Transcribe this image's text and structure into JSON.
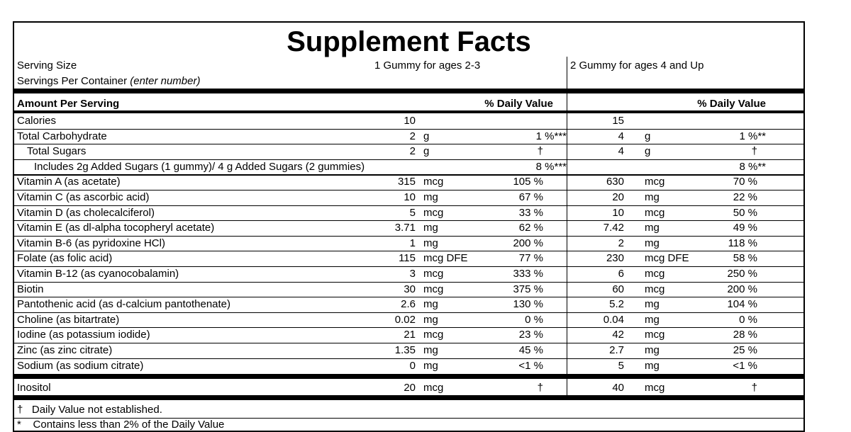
{
  "title": "Supplement Facts",
  "serving": {
    "size_label": "Serving Size",
    "servings_label": "Servings Per Container",
    "servings_note": "(enter number)",
    "col1": "1 Gummy for ages 2-3",
    "col2": "2 Gummy for ages 4 and Up"
  },
  "header": {
    "amount_label": "Amount Per Serving",
    "dv_col1": "% Daily Value",
    "dv_col2": "% Daily Value"
  },
  "rows": [
    {
      "name": "Calories",
      "a1": "10",
      "u1": "",
      "d1": "",
      "a2": "15",
      "u2": "",
      "d2": ""
    },
    {
      "name": "Total Carbohydrate",
      "a1": "2",
      "u1": "g",
      "d1": "1 %***",
      "a2": "4",
      "u2": "g",
      "d2": "1 %**"
    },
    {
      "name": "Total Sugars",
      "a1": "2",
      "u1": "g",
      "d1": "†",
      "a2": "4",
      "u2": "g",
      "d2": "†"
    },
    {
      "name": "Includes 2g Added Sugars (1 gummy)/ 4 g Added Sugars (2 gummies)",
      "a1": "",
      "u1": "",
      "d1": "8 %***",
      "a2": "",
      "u2": "",
      "d2": "8 %**"
    },
    {
      "name": "Vitamin A (as acetate)",
      "a1": "315",
      "u1": "mcg",
      "d1": "105 %",
      "a2": "630",
      "u2": "mcg",
      "d2": "70 %"
    },
    {
      "name": "Vitamin C (as ascorbic acid)",
      "a1": "10",
      "u1": "mg",
      "d1": "67 %",
      "a2": "20",
      "u2": "mg",
      "d2": "22 %"
    },
    {
      "name": "Vitamin D (as cholecalciferol)",
      "a1": "5",
      "u1": "mcg",
      "d1": "33 %",
      "a2": "10",
      "u2": "mcg",
      "d2": "50 %"
    },
    {
      "name": "Vitamin E (as dl-alpha tocopheryl acetate)",
      "a1": "3.71",
      "u1": "mg",
      "d1": "62 %",
      "a2": "7.42",
      "u2": "mg",
      "d2": "49 %"
    },
    {
      "name": "Vitamin B-6 (as pyridoxine HCl)",
      "a1": "1",
      "u1": "mg",
      "d1": "200 %",
      "a2": "2",
      "u2": "mg",
      "d2": "118 %"
    },
    {
      "name": "Folate (as folic acid)",
      "a1": "115",
      "u1": "mcg DFE",
      "d1": "77 %",
      "a2": "230",
      "u2": "mcg DFE",
      "d2": "58 %"
    },
    {
      "name": "Vitamin B-12 (as cyanocobalamin)",
      "a1": "3",
      "u1": "mcg",
      "d1": "333 %",
      "a2": "6",
      "u2": "mcg",
      "d2": "250 %"
    },
    {
      "name": "Biotin",
      "a1": "30",
      "u1": "mcg",
      "d1": "375 %",
      "a2": "60",
      "u2": "mcg",
      "d2": "200 %"
    },
    {
      "name": "Pantothenic acid (as d-calcium pantothenate)",
      "a1": "2.6",
      "u1": "mg",
      "d1": "130 %",
      "a2": "5.2",
      "u2": "mg",
      "d2": "104 %"
    },
    {
      "name": "Choline (as bitartrate)",
      "a1": "0.02",
      "u1": "mg",
      "d1": "0 %",
      "a2": "0.04",
      "u2": "mg",
      "d2": "0 %"
    },
    {
      "name": "Iodine (as potassium iodide)",
      "a1": "21",
      "u1": "mcg",
      "d1": "23 %",
      "a2": "42",
      "u2": "mcg",
      "d2": "28 %"
    },
    {
      "name": "Zinc (as zinc citrate)",
      "a1": "1.35",
      "u1": "mg",
      "d1": "45 %",
      "a2": "2.7",
      "u2": "mg",
      "d2": "25 %"
    },
    {
      "name": "Sodium (as sodium citrate)",
      "a1": "0",
      "u1": "mg",
      "d1": "<1 %",
      "a2": "5",
      "u2": "mg",
      "d2": "<1 %"
    }
  ],
  "other": {
    "name": "Inositol",
    "a1": "20",
    "u1": "mcg",
    "d1": "†",
    "a2": "40",
    "u2": "mcg",
    "d2": "†"
  },
  "footnotes": [
    {
      "mark": "†",
      "text": "Daily Value not established."
    },
    {
      "mark": "*",
      "text": "Contains less than 2% of the Daily Value"
    }
  ]
}
